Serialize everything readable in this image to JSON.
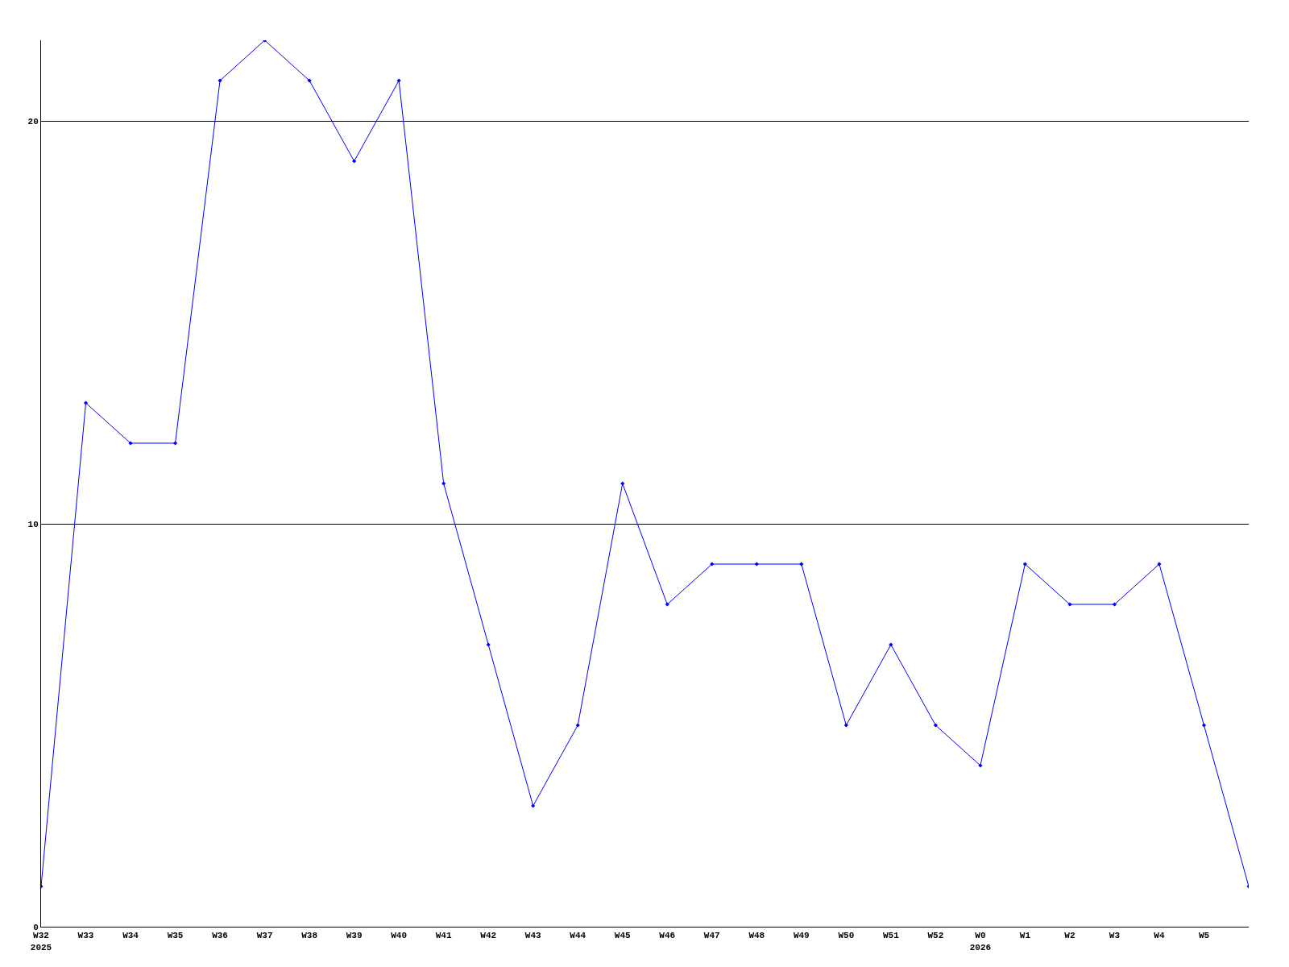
{
  "chart_data": {
    "type": "line",
    "categories": [
      "W32\n2025",
      "W33",
      "W34",
      "W35",
      "W36",
      "W37",
      "W38",
      "W39",
      "W40",
      "W41",
      "W42",
      "W43",
      "W44",
      "W45",
      "W46",
      "W47",
      "W48",
      "W49",
      "W50",
      "W51",
      "W52",
      "W0\n2026",
      "W1",
      "W2",
      "W3",
      "W4",
      "W5",
      null
    ],
    "series": [
      {
        "color": "#0000ff",
        "values": [
          1,
          13,
          12,
          12,
          21,
          22,
          21,
          19,
          21,
          11,
          7,
          3,
          5,
          11,
          8,
          9,
          9,
          9,
          5,
          7,
          5,
          4,
          9,
          8,
          8,
          9,
          5,
          1
        ]
      }
    ],
    "ylim": [
      0,
      22
    ],
    "yticks": [
      0,
      10,
      20
    ],
    "grid": "y",
    "marker": "diamond",
    "line_style": "solid"
  }
}
